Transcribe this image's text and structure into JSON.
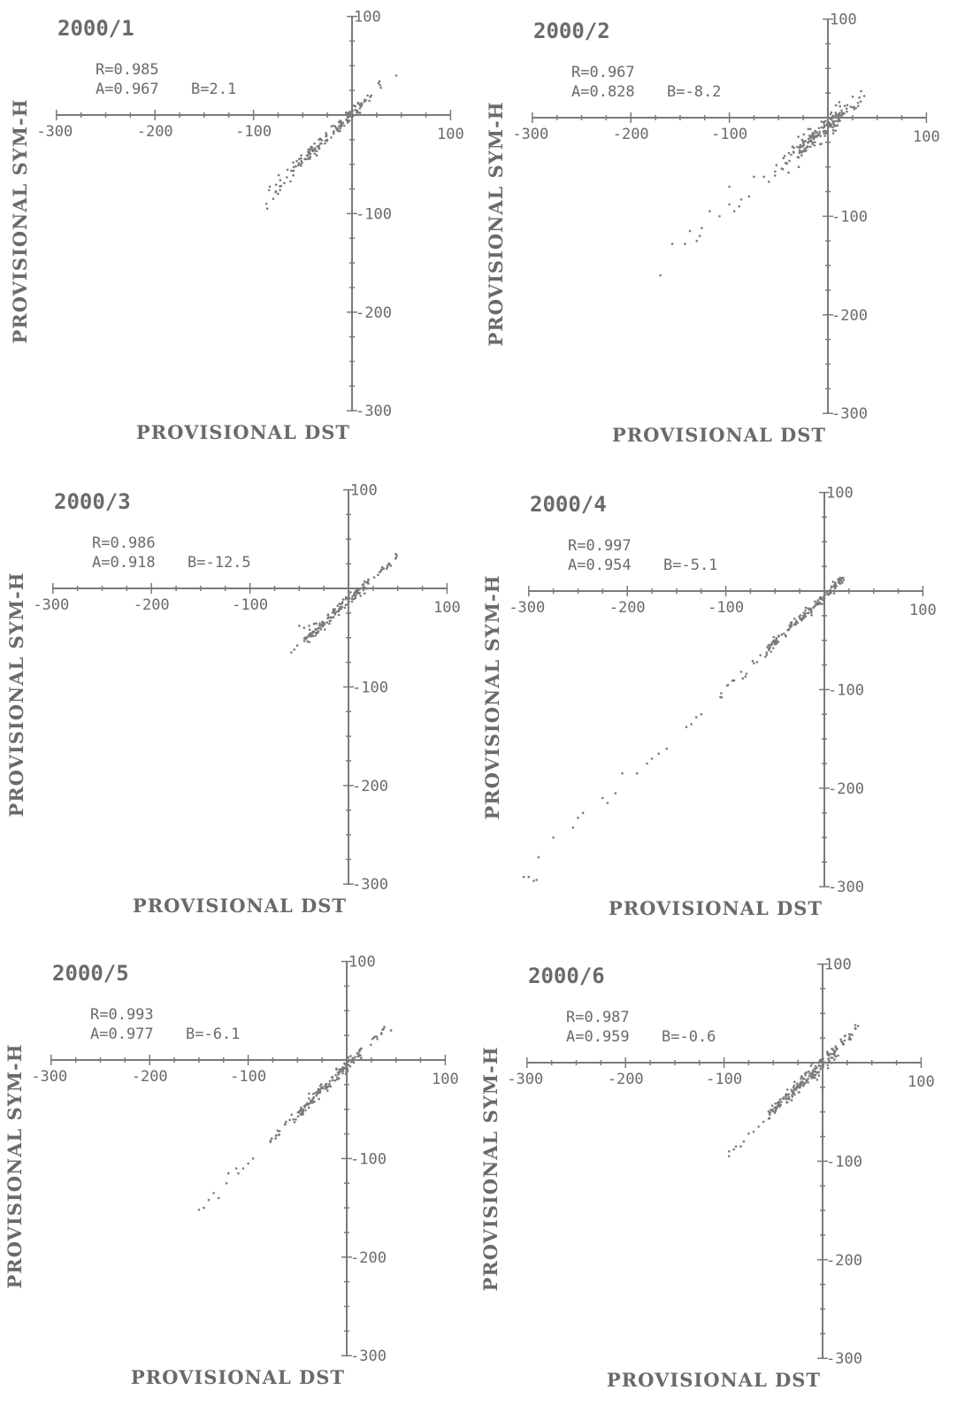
{
  "chart_data": [
    {
      "type": "scatter",
      "title": "2000/1",
      "stats": {
        "R": "R=0.985",
        "A": "A=0.967",
        "B": "B=2.1"
      },
      "xlabel": "PROVISIONAL DST",
      "ylabel": "PROVISIONAL SYM-H",
      "xlim": [
        -300,
        100
      ],
      "ylim": [
        -300,
        100
      ],
      "xticks": [
        "-300",
        "-200",
        "-100",
        "100"
      ],
      "yticks": [
        "100",
        "-100",
        "-200",
        "-300"
      ],
      "fit": {
        "a": 0.967,
        "b": 2.1,
        "r": 0.985
      },
      "clusters": [
        {
          "x": [
            -60,
            10
          ],
          "n": 130,
          "spread": 3.5
        },
        {
          "x": [
            -85,
            -60
          ],
          "n": 14,
          "spread": 4
        },
        {
          "x": [
            10,
            30
          ],
          "n": 12,
          "spread": 3
        }
      ],
      "points": [
        [
          -87,
          -90
        ],
        [
          -86,
          -95
        ],
        [
          -80,
          -85
        ],
        [
          -75,
          -80
        ],
        [
          -72,
          -72
        ],
        [
          45,
          40
        ]
      ]
    },
    {
      "type": "scatter",
      "title": "2000/2",
      "stats": {
        "R": "R=0.967",
        "A": "A=0.828",
        "B": "B=-8.2"
      },
      "xlabel": "PROVISIONAL DST",
      "ylabel": "PROVISIONAL SYM-H",
      "xlim": [
        -300,
        100
      ],
      "ylim": [
        -300,
        100
      ],
      "xticks": [
        "-300",
        "-200",
        "-100",
        "100"
      ],
      "yticks": [
        "100",
        "-100",
        "-200",
        "-300"
      ],
      "fit": {
        "a": 0.828,
        "b": -8.2,
        "r": 0.967
      },
      "clusters": [
        {
          "x": [
            -30,
            15
          ],
          "n": 150,
          "spread": 5
        },
        {
          "x": [
            -55,
            -30
          ],
          "n": 20,
          "spread": 5
        },
        {
          "x": [
            15,
            35
          ],
          "n": 16,
          "spread": 5
        }
      ],
      "points": [
        [
          -60,
          -65
        ],
        [
          -65,
          -60
        ],
        [
          -80,
          -80
        ],
        [
          -90,
          -90
        ],
        [
          -95,
          -95
        ],
        [
          -100,
          -88
        ],
        [
          -110,
          -100
        ],
        [
          -128,
          -112
        ],
        [
          -130,
          -120
        ],
        [
          -133,
          -125
        ],
        [
          -140,
          -115
        ],
        [
          -145,
          -128
        ],
        [
          -158,
          -128
        ],
        [
          -170,
          -160
        ],
        [
          -120,
          -95
        ],
        [
          -100,
          -70
        ],
        [
          -75,
          -60
        ],
        [
          -88,
          -83
        ],
        [
          37,
          22
        ]
      ]
    },
    {
      "type": "scatter",
      "title": "2000/3",
      "stats": {
        "R": "R=0.986",
        "A": "A=0.918",
        "B": "B=-12.5"
      },
      "xlabel": "PROVISIONAL DST",
      "ylabel": "PROVISIONAL SYM-H",
      "xlim": [
        -300,
        100
      ],
      "ylim": [
        -300,
        100
      ],
      "xticks": [
        "-300",
        "-200",
        "-100",
        "100"
      ],
      "yticks": [
        "100",
        "-100",
        "-200",
        "-300"
      ],
      "fit": {
        "a": 0.918,
        "b": -12.5,
        "r": 0.986
      },
      "clusters": [
        {
          "x": [
            -45,
            20
          ],
          "n": 140,
          "spread": 3
        },
        {
          "x": [
            20,
            55
          ],
          "n": 20,
          "spread": 2.5
        }
      ],
      "points": [
        [
          -58,
          -65
        ],
        [
          -55,
          -62
        ],
        [
          -52,
          -58
        ],
        [
          -50,
          -38
        ],
        [
          -45,
          -40
        ],
        [
          -40,
          -38
        ],
        [
          -35,
          -36
        ]
      ]
    },
    {
      "type": "scatter",
      "title": "2000/4",
      "stats": {
        "R": "R=0.997",
        "A": "A=0.954",
        "B": "B=-5.1"
      },
      "xlabel": "PROVISIONAL DST",
      "ylabel": "PROVISIONAL SYM-H",
      "xlim": [
        -300,
        100
      ],
      "ylim": [
        -300,
        100
      ],
      "xticks": [
        "-300",
        "-200",
        "-100",
        "100"
      ],
      "yticks": [
        "100",
        "-100",
        "-200",
        "-300"
      ],
      "fit": {
        "a": 0.954,
        "b": -5.1,
        "r": 0.997
      },
      "clusters": [
        {
          "x": [
            -60,
            20
          ],
          "n": 160,
          "spread": 2.5
        },
        {
          "x": [
            -110,
            -60
          ],
          "n": 16,
          "spread": 2.5
        }
      ],
      "points": [
        [
          -125,
          -125
        ],
        [
          -130,
          -128
        ],
        [
          -135,
          -135
        ],
        [
          -140,
          -138
        ],
        [
          -160,
          -160
        ],
        [
          -168,
          -165
        ],
        [
          -175,
          -170
        ],
        [
          -180,
          -175
        ],
        [
          -190,
          -185
        ],
        [
          -205,
          -185
        ],
        [
          -212,
          -205
        ],
        [
          -220,
          -215
        ],
        [
          -225,
          -210
        ],
        [
          -245,
          -225
        ],
        [
          -250,
          -230
        ],
        [
          -255,
          -240
        ],
        [
          -275,
          -250
        ],
        [
          -290,
          -270
        ],
        [
          -300,
          -290
        ],
        [
          -292,
          -293
        ],
        [
          -305,
          -290
        ],
        [
          -295,
          -294
        ]
      ]
    },
    {
      "type": "scatter",
      "title": "2000/5",
      "stats": {
        "R": "R=0.993",
        "A": "A=0.977",
        "B": "B=-6.1"
      },
      "xlabel": "PROVISIONAL DST",
      "ylabel": "PROVISIONAL SYM-H",
      "xlim": [
        -300,
        100
      ],
      "ylim": [
        -300,
        100
      ],
      "xticks": [
        "-300",
        "-200",
        "-100",
        "100"
      ],
      "yticks": [
        "100",
        "-100",
        "-200",
        "-300"
      ],
      "fit": {
        "a": 0.977,
        "b": -6.1,
        "r": 0.993
      },
      "clusters": [
        {
          "x": [
            -50,
            15
          ],
          "n": 140,
          "spread": 3
        },
        {
          "x": [
            -80,
            -50
          ],
          "n": 18,
          "spread": 3
        },
        {
          "x": [
            15,
            40
          ],
          "n": 12,
          "spread": 2.5
        }
      ],
      "points": [
        [
          -95,
          -100
        ],
        [
          -100,
          -105
        ],
        [
          -105,
          -110
        ],
        [
          -110,
          -115
        ],
        [
          -112,
          -110
        ],
        [
          -120,
          -115
        ],
        [
          -122,
          -125
        ],
        [
          -130,
          -140
        ],
        [
          -135,
          -135
        ],
        [
          -140,
          -142
        ],
        [
          -145,
          -150
        ],
        [
          -150,
          -152
        ],
        [
          45,
          30
        ]
      ]
    },
    {
      "type": "scatter",
      "title": "2000/6",
      "stats": {
        "R": "R=0.987",
        "A": "A=0.959",
        "B": "B=-0.6"
      },
      "xlabel": "PROVISIONAL DST",
      "ylabel": "PROVISIONAL SYM-H",
      "xlim": [
        -300,
        100
      ],
      "ylim": [
        -300,
        100
      ],
      "xticks": [
        "-300",
        "-200",
        "-100",
        "100"
      ],
      "yticks": [
        "100",
        "-100",
        "-200",
        "-300"
      ],
      "fit": {
        "a": 0.959,
        "b": -0.6,
        "r": 0.987
      },
      "clusters": [
        {
          "x": [
            -55,
            15
          ],
          "n": 180,
          "spread": 4
        },
        {
          "x": [
            15,
            38
          ],
          "n": 20,
          "spread": 4
        }
      ],
      "points": [
        [
          -60,
          -60
        ],
        [
          -65,
          -65
        ],
        [
          -70,
          -70
        ],
        [
          -75,
          -72
        ],
        [
          -80,
          -80
        ],
        [
          -83,
          -85
        ],
        [
          -88,
          -85
        ],
        [
          -90,
          -88
        ],
        [
          -95,
          -95
        ],
        [
          -95,
          -90
        ]
      ]
    }
  ]
}
